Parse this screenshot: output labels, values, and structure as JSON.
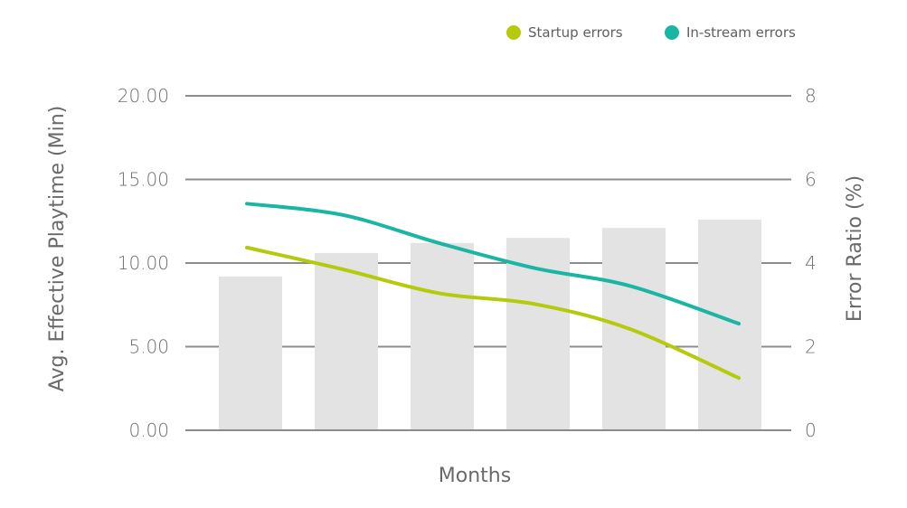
{
  "chart_data": {
    "type": "bar",
    "categories": [
      "",
      "",
      "",
      "",
      "",
      ""
    ],
    "xlabel": "Months",
    "ylabel": "Avg. Effective Playtime (Min)",
    "y2label": "Error Ratio (%)",
    "ylim": [
      0,
      20
    ],
    "y2lim": [
      0,
      8
    ],
    "yticks": [
      "0.00",
      "5.00",
      "10.00",
      "15.00",
      "20.00"
    ],
    "y2ticks": [
      "0",
      "2",
      "4",
      "6",
      "8"
    ],
    "bar_color": "#e3e3e3",
    "bars": {
      "axis": "left",
      "values": [
        9.2,
        10.6,
        11.2,
        11.5,
        12.1,
        12.6
      ]
    },
    "series": [
      {
        "name": "Startup errors",
        "axis": "right",
        "color": "#b5c90d",
        "values": [
          4.37,
          3.85,
          3.28,
          3.02,
          2.42,
          1.25
        ]
      },
      {
        "name": "In-stream errors",
        "axis": "right",
        "color": "#1bb5a3",
        "values": [
          5.42,
          5.15,
          4.48,
          3.88,
          3.45,
          2.55
        ]
      }
    ],
    "grid": true,
    "legend": "top-right"
  }
}
